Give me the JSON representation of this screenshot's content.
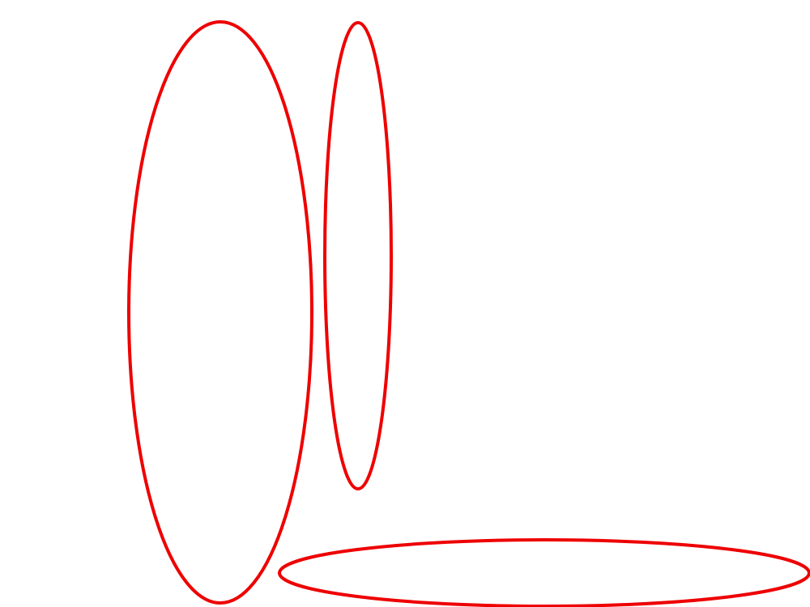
{
  "stroke_color": "#ee0000",
  "background_color": "#ffffff",
  "shapes": [
    {
      "kind": "ellipse",
      "label": ""
    },
    {
      "kind": "ellipse",
      "label": ""
    },
    {
      "kind": "ellipse",
      "label": ""
    }
  ]
}
